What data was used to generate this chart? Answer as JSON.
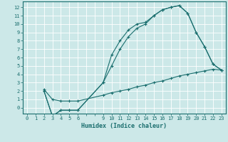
{
  "xlabel": "Humidex (Indice chaleur)",
  "bg_color": "#cce8e8",
  "grid_color": "#ffffff",
  "line_color": "#1a6e6e",
  "xlim": [
    -0.5,
    23.5
  ],
  "ylim": [
    -0.7,
    12.7
  ],
  "xtick_vals": [
    0,
    1,
    2,
    3,
    4,
    5,
    6,
    9,
    10,
    11,
    12,
    13,
    14,
    15,
    16,
    17,
    18,
    19,
    20,
    21,
    22,
    23
  ],
  "ytick_vals": [
    0,
    1,
    2,
    3,
    4,
    5,
    6,
    7,
    8,
    9,
    10,
    11,
    12
  ],
  "line1_x": [
    2,
    3,
    4,
    5,
    6,
    9,
    10,
    11,
    12,
    13,
    14,
    15,
    16,
    17,
    18,
    19,
    20,
    21,
    22,
    23
  ],
  "line1_y": [
    2.0,
    -1.0,
    -0.3,
    -0.3,
    -0.3,
    3.0,
    6.3,
    8.0,
    9.3,
    10.0,
    10.2,
    11.0,
    11.7,
    12.0,
    12.2,
    11.3,
    9.0,
    7.3,
    5.2,
    4.5
  ],
  "line2_x": [
    2,
    3,
    4,
    5,
    6,
    9,
    10,
    11,
    12,
    13,
    14,
    15,
    16,
    17,
    18,
    19,
    20,
    21,
    22,
    23
  ],
  "line2_y": [
    2.0,
    -1.0,
    -0.3,
    -0.3,
    -0.3,
    3.0,
    5.0,
    7.0,
    8.5,
    9.5,
    10.0,
    11.0,
    11.7,
    12.0,
    12.2,
    11.3,
    9.0,
    7.3,
    5.2,
    4.5
  ],
  "line3_x": [
    2,
    3,
    4,
    5,
    6,
    9,
    10,
    11,
    12,
    13,
    14,
    15,
    16,
    17,
    18,
    19,
    20,
    21,
    22,
    23
  ],
  "line3_y": [
    2.2,
    1.0,
    0.8,
    0.8,
    0.8,
    1.5,
    1.8,
    2.0,
    2.2,
    2.5,
    2.7,
    3.0,
    3.2,
    3.5,
    3.8,
    4.0,
    4.2,
    4.4,
    4.6,
    4.5
  ],
  "tick_fontsize": 5,
  "xlabel_fontsize": 6,
  "lw": 0.8,
  "ms": 2.5
}
